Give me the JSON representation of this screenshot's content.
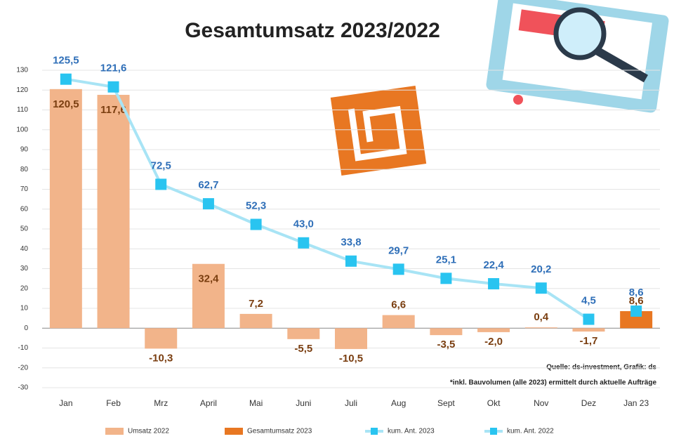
{
  "chart_data": {
    "type": "bar_line",
    "title": "Gesamtumsatz 2023/2022",
    "categories": [
      "Jan",
      "Feb",
      "Mrz",
      "April",
      "Mai",
      "Juni",
      "Juli",
      "Aug",
      "Sept",
      "Okt",
      "Nov",
      "Dez",
      "Jan 23"
    ],
    "series": [
      {
        "name": "Umsatz 2022",
        "kind": "bar",
        "color": "#f2b48a",
        "values": [
          120.5,
          117.6,
          -10.3,
          32.4,
          7.2,
          -5.5,
          -10.5,
          6.6,
          -3.5,
          -2.0,
          0.4,
          -1.7,
          null
        ],
        "value_labels": [
          "120,5",
          "117,6",
          "-10,3",
          "32,4",
          "7,2",
          "-5,5",
          "-10,5",
          "6,6",
          "-3,5",
          "-2,0",
          "0,4",
          "-1,7",
          null
        ]
      },
      {
        "name": "Gesamtumsatz 2023",
        "kind": "bar",
        "color": "#e87722",
        "values": [
          null,
          null,
          null,
          null,
          null,
          null,
          null,
          null,
          null,
          null,
          null,
          null,
          8.6
        ],
        "value_labels": [
          null,
          null,
          null,
          null,
          null,
          null,
          null,
          null,
          null,
          null,
          null,
          null,
          "8,6"
        ]
      },
      {
        "name": "kum. Ant. 2023",
        "kind": "line",
        "color": "#29c4f0",
        "values": [
          null,
          null,
          null,
          null,
          null,
          null,
          null,
          null,
          null,
          null,
          null,
          null,
          8.6
        ],
        "value_labels": [
          null,
          null,
          null,
          null,
          null,
          null,
          null,
          null,
          null,
          null,
          null,
          null,
          "8,6"
        ]
      },
      {
        "name": "kum. Ant. 2022",
        "kind": "line",
        "color": "#29c4f0",
        "values": [
          125.5,
          121.6,
          72.5,
          62.7,
          52.3,
          43.0,
          33.8,
          29.7,
          25.1,
          22.4,
          20.2,
          4.5,
          null
        ],
        "value_labels": [
          "125,5",
          "121,6",
          "72,5",
          "62,7",
          "52,3",
          "43,0",
          "33,8",
          "29,7",
          "25,1",
          "22,4",
          "20,2",
          "4,5",
          null
        ]
      }
    ],
    "ylim": [
      -30,
      130
    ],
    "yticks": [
      -30,
      -20,
      -10,
      0,
      10,
      20,
      30,
      40,
      50,
      60,
      70,
      80,
      90,
      100,
      110,
      120,
      130
    ],
    "grid": true,
    "notes": [
      "Quelle: ds-investment, Grafik: ds",
      "*inkl. Bauvolumen (alle 2023) ermittelt durch aktuelle Aufträge"
    ]
  }
}
